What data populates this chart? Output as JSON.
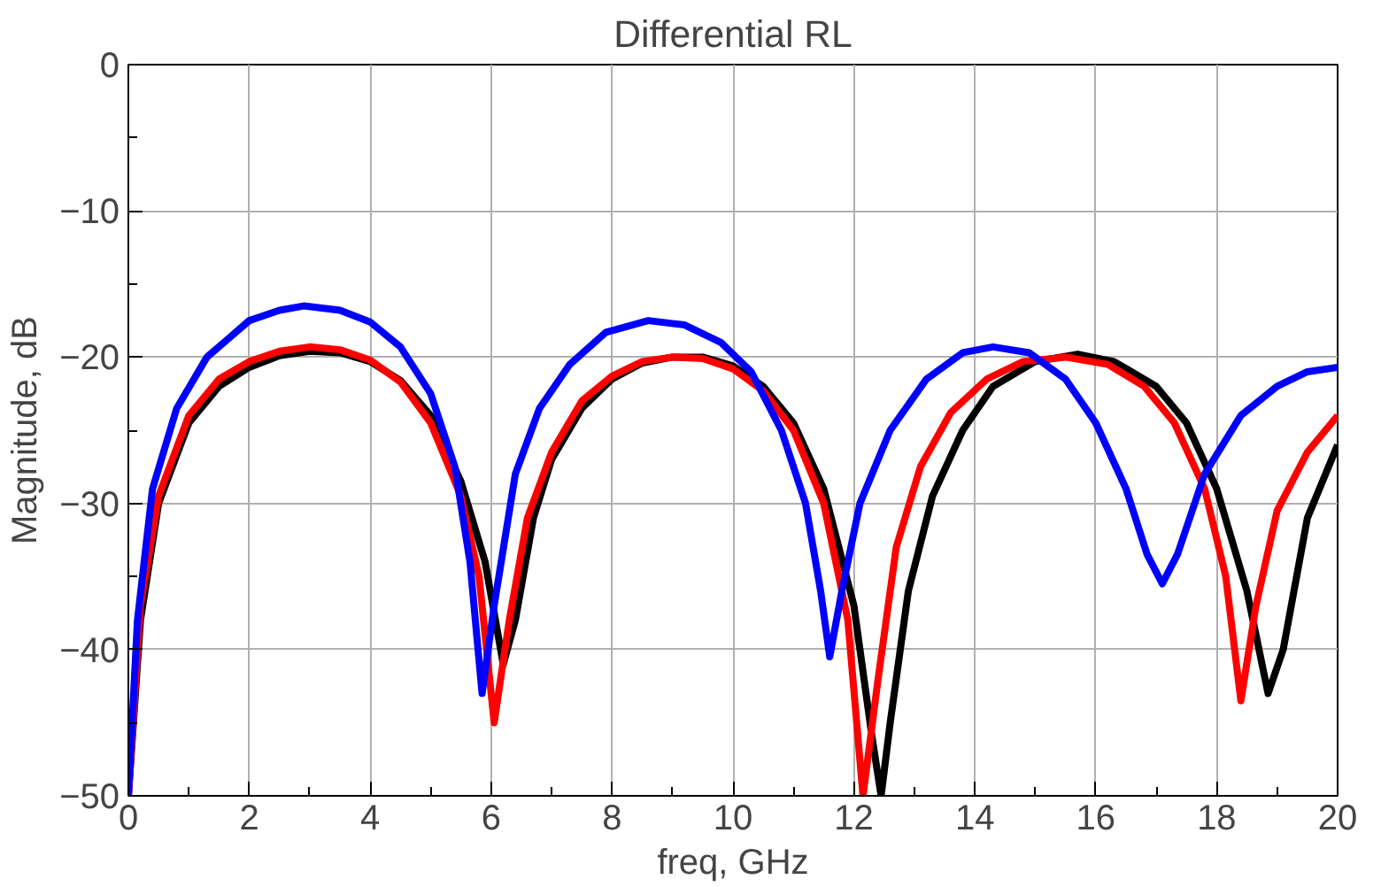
{
  "chart_data": {
    "type": "line",
    "title": "Differential RL",
    "xlabel": "freq, GHz",
    "ylabel": "Magnitude, dB",
    "xlim": [
      0,
      20
    ],
    "ylim": [
      -50,
      0
    ],
    "xticks": [
      0,
      2,
      4,
      6,
      8,
      10,
      12,
      14,
      16,
      18,
      20
    ],
    "yticks": [
      0,
      -10,
      -20,
      -30,
      -40,
      -50
    ],
    "grid": true,
    "marker": "none",
    "line_style": "solid",
    "series": [
      {
        "color": "#000000",
        "x": [
          0,
          0.2,
          0.5,
          1,
          1.5,
          2,
          2.5,
          3,
          3.5,
          4,
          4.5,
          5,
          5.5,
          5.9,
          6.2,
          6.4,
          6.7,
          7,
          7.5,
          8,
          8.5,
          9,
          9.5,
          10,
          10.5,
          11,
          11.5,
          12,
          12.3,
          12.45,
          12.6,
          12.9,
          13.3,
          13.8,
          14.3,
          15,
          15.7,
          16.3,
          17,
          17.5,
          18,
          18.5,
          18.85,
          19.1,
          19.5,
          20
        ],
        "values": [
          -50,
          -38,
          -30,
          -24.5,
          -22,
          -20.7,
          -19.9,
          -19.6,
          -19.7,
          -20.3,
          -21.6,
          -24,
          -28.5,
          -34,
          -41,
          -38,
          -31,
          -27,
          -23.5,
          -21.5,
          -20.4,
          -20,
          -20,
          -20.6,
          -22,
          -24.5,
          -29,
          -37,
          -46,
          -50,
          -45,
          -36,
          -29.5,
          -25,
          -22,
          -20.3,
          -19.8,
          -20.3,
          -22,
          -24.5,
          -29,
          -36,
          -43,
          -40,
          -31,
          -26
        ]
      },
      {
        "color": "#ff0000",
        "x": [
          0,
          0.2,
          0.5,
          1,
          1.5,
          2,
          2.5,
          3,
          3.5,
          4,
          4.5,
          5,
          5.5,
          5.8,
          6.05,
          6.3,
          6.6,
          7,
          7.5,
          8,
          8.5,
          9,
          9.5,
          10,
          10.5,
          11,
          11.5,
          11.9,
          12.15,
          12.4,
          12.7,
          13.1,
          13.6,
          14.2,
          14.8,
          15.5,
          16.2,
          16.8,
          17.3,
          17.8,
          18.15,
          18.4,
          18.65,
          19,
          19.5,
          20
        ],
        "values": [
          -50,
          -37,
          -29.5,
          -24,
          -21.5,
          -20.3,
          -19.6,
          -19.3,
          -19.5,
          -20.2,
          -21.7,
          -24.5,
          -29.5,
          -35,
          -45,
          -38,
          -31,
          -26.5,
          -23,
          -21.3,
          -20.3,
          -20,
          -20.1,
          -20.8,
          -22.3,
          -25,
          -30,
          -38,
          -50,
          -42,
          -33,
          -27.5,
          -23.8,
          -21.5,
          -20.3,
          -20,
          -20.5,
          -22,
          -24.5,
          -29,
          -35,
          -43.5,
          -37,
          -30.5,
          -26.5,
          -24
        ]
      },
      {
        "color": "#0000ff",
        "x": [
          0,
          0.15,
          0.4,
          0.8,
          1.3,
          2,
          2.5,
          2.9,
          3.5,
          4,
          4.5,
          5,
          5.4,
          5.65,
          5.85,
          6.05,
          6.4,
          6.8,
          7.3,
          7.9,
          8.6,
          9.2,
          9.8,
          10.3,
          10.8,
          11.2,
          11.45,
          11.6,
          11.8,
          12.1,
          12.6,
          13.2,
          13.8,
          14.3,
          14.9,
          15.5,
          16,
          16.5,
          16.85,
          17.1,
          17.35,
          17.8,
          18.4,
          19,
          19.5,
          20
        ],
        "values": [
          -50,
          -38,
          -29,
          -23.5,
          -20,
          -17.5,
          -16.8,
          -16.5,
          -16.8,
          -17.6,
          -19.3,
          -22.5,
          -27.5,
          -34,
          -43,
          -37,
          -28,
          -23.5,
          -20.5,
          -18.3,
          -17.5,
          -17.8,
          -19,
          -21,
          -25,
          -30,
          -36,
          -40.5,
          -36,
          -30,
          -25,
          -21.5,
          -19.7,
          -19.3,
          -19.7,
          -21.5,
          -24.5,
          -29,
          -33.5,
          -35.5,
          -33.5,
          -28,
          -24,
          -22,
          -21,
          -20.7
        ]
      }
    ]
  }
}
